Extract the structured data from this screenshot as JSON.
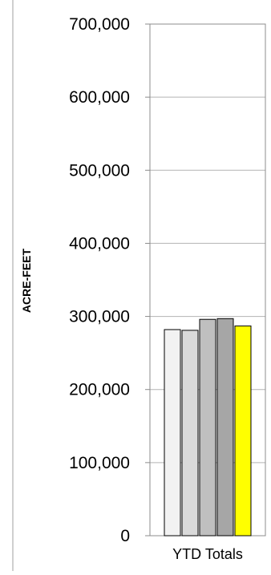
{
  "chart_data": {
    "type": "bar",
    "title": "",
    "xlabel": "",
    "ylabel": "ACRE-FEET",
    "categories": [
      "YTD Totals"
    ],
    "series": [
      {
        "values": [
          282000
        ],
        "color": "#f2f2f2"
      },
      {
        "values": [
          281000
        ],
        "color": "#d9d9d9"
      },
      {
        "values": [
          296000
        ],
        "color": "#bfbfbf"
      },
      {
        "values": [
          297000
        ],
        "color": "#a6a6a6"
      },
      {
        "values": [
          287000
        ],
        "color": "#ffff00"
      }
    ],
    "ylim": [
      0,
      700000
    ],
    "yticks": [
      0,
      100000,
      200000,
      300000,
      400000,
      500000,
      600000,
      700000
    ],
    "ytick_labels": [
      "0",
      "100,000",
      "200,000",
      "300,000",
      "400,000",
      "500,000",
      "600,000",
      "700,000"
    ],
    "grid": true,
    "legend": "none"
  }
}
